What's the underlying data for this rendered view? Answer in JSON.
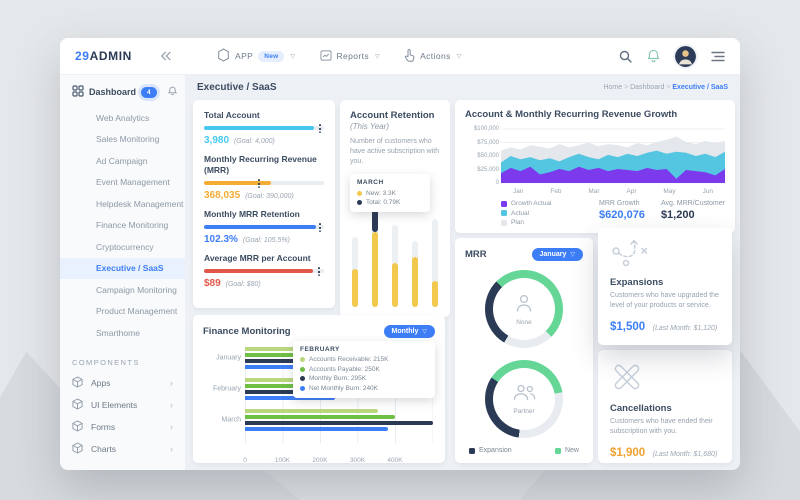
{
  "icons": {
    "dropdown": "▽",
    "breadcrumb_separator": ">",
    "chevron_right": "›"
  },
  "navbar": {
    "logo_prefix": "29",
    "logo_suffix": "ADMIN",
    "menus": [
      {
        "label": "APP",
        "badge": "New",
        "icon": "hexagon-icon"
      },
      {
        "label": "Reports",
        "icon": "reports-icon"
      },
      {
        "label": "Actions",
        "icon": "actions-icon"
      }
    ],
    "right_icons": [
      "search-icon",
      "notifications-bell-icon",
      "user-avatar",
      "menu-icon"
    ]
  },
  "sidebar": {
    "dashboard_label": "Dashboard",
    "dashboard_badge": "4",
    "items": [
      "Web Analytics",
      "Sales Monitoring",
      "Ad Campaign",
      "Event Management",
      "Helpdesk Management",
      "Finance Monitoring",
      "Cryptocurrency",
      "Executive / SaaS",
      "Campaign Monitoring",
      "Product Management",
      "Smarthome"
    ],
    "active_item": "Executive / SaaS",
    "components_label": "COMPONENTS",
    "components": [
      "Apps",
      "UI Elements",
      "Forms",
      "Charts"
    ]
  },
  "header": {
    "title": "Executive / SaaS",
    "breadcrumb": [
      "Home",
      "Dashboard",
      "Executive / SaaS"
    ]
  },
  "kpis": [
    {
      "label": "Total Account",
      "value": "3,980",
      "goal": "(Goal: 4,000)",
      "color": "#47c8ee",
      "pct": 92,
      "tick": 96
    },
    {
      "label": "Monthly Recurring Revenue (MRR)",
      "value": "368,035",
      "goal": "(Goal: 390,000)",
      "color": "#f2ac33",
      "pct": 56,
      "tick": 45
    },
    {
      "label": "Monthly MRR Retention",
      "value": "102.3%",
      "goal": "(Goal: 105.5%)",
      "color": "#3d7ef7",
      "pct": 93,
      "tick": 96
    },
    {
      "label": "Average MRR per Account",
      "value": "$89",
      "goal": "(Goal: $80)",
      "color": "#e2574c",
      "pct": 91,
      "tick": 95
    }
  ],
  "retention": {
    "title": "Account Retention",
    "subtitle": "(This Year)",
    "description": "Number of customers who have active subscription with you.",
    "tooltip": {
      "title": "MARCH",
      "rows": [
        {
          "label": "New: 3.3K",
          "color": "#f2c94c"
        },
        {
          "label": "Total: 0.79K",
          "color": "#2b3a55"
        }
      ]
    }
  },
  "growth": {
    "title": "Account & Monthly Recurring Revenue Growth",
    "legend": [
      {
        "label": "Growth Actual",
        "color": "#7c3aed"
      },
      {
        "label": "Actual",
        "color": "#54c6e2"
      },
      {
        "label": "Plan",
        "color": "#e4e7eb"
      }
    ],
    "stats": [
      {
        "label": "MRR Growth",
        "value": "$620,076",
        "color": "#3d7ef7"
      },
      {
        "label": "Avg. MRR/Customer",
        "value": "$1,200",
        "color": "#2b3a55"
      }
    ]
  },
  "mrr": {
    "title": "MRR",
    "month": "January",
    "donut_labels": [
      {
        "label": "None",
        "icon": "single-user-icon"
      },
      {
        "label": "Partner",
        "icon": "multi-user-icon"
      }
    ],
    "legend": [
      {
        "label": "Expansion",
        "color": "#2b3a55"
      },
      {
        "label": "New",
        "color": "#65d695"
      }
    ]
  },
  "expansions": {
    "title": "Expansions",
    "description": "Customers who have upgraded the level of your products or service.",
    "value": "$1,500",
    "value_color": "#3d7ef7",
    "last_month": "(Last Month: $1,120)"
  },
  "cancellations": {
    "title": "Cancellations",
    "description": "Customers who have ended their subscription with you.",
    "value": "$1,900",
    "value_color": "#f0a22e",
    "last_month": "(Last Month: $1,680)"
  },
  "finance": {
    "title": "Finance Monitoring",
    "period": "Monthly",
    "tooltip": {
      "title": "FEBRUARY",
      "rows": [
        {
          "label": "Accounts Receivable: 215K",
          "color": "#b9d87d"
        },
        {
          "label": "Accounts Payable: 250K",
          "color": "#6fbf44"
        },
        {
          "label": "Monthly Burn: 295K",
          "color": "#2b3a55"
        },
        {
          "label": "Net Monthly Burn: 240K",
          "color": "#3d7ef7"
        }
      ]
    }
  },
  "chart_data": [
    {
      "id": "account-retention",
      "type": "bar",
      "title": "Account Retention (This Year)",
      "unit": "percent of chart height",
      "points": [
        {
          "track": 70,
          "fill": 38
        },
        {
          "track": 100,
          "fill": 75,
          "cap": 25
        },
        {
          "track": 82,
          "fill": 44
        },
        {
          "track": 66,
          "fill": 50
        },
        {
          "track": 88,
          "fill": 26
        }
      ],
      "highlight": {
        "index": 1,
        "month": "MARCH",
        "new": "3.3K",
        "total": "0.79K"
      },
      "colors": {
        "track": "#edf0f3",
        "fill": "#f2c94c",
        "cap": "#2b3a55"
      }
    },
    {
      "id": "revenue-growth",
      "type": "area",
      "title": "Account & Monthly Recurring Revenue Growth",
      "x_labels": [
        "Jan",
        "Feb",
        "Mar",
        "Apr",
        "May",
        "Jun"
      ],
      "y_ticks": [
        {
          "label": "$100,000",
          "value": 100
        },
        {
          "label": "$75,000",
          "value": 75
        },
        {
          "label": "$50,000",
          "value": 50
        },
        {
          "label": "$25,000",
          "value": 25
        },
        {
          "label": "0",
          "value": 0
        }
      ],
      "ylim": [
        0,
        100
      ],
      "unit": "$ thousands",
      "legend_position": "bottom-left",
      "series": [
        {
          "name": "Plan",
          "color": "#e4e7eb",
          "values": [
            60,
            66,
            62,
            70,
            67,
            64,
            72,
            66,
            70,
            75,
            68,
            72,
            70,
            66,
            74,
            70,
            76,
            80,
            86,
            76,
            72,
            78,
            74,
            78
          ]
        },
        {
          "name": "Actual",
          "color": "#54c6e2",
          "values": [
            38,
            50,
            44,
            48,
            42,
            46,
            40,
            48,
            54,
            48,
            44,
            52,
            48,
            54,
            50,
            56,
            60,
            54,
            58,
            56,
            50,
            54,
            48,
            58
          ]
        },
        {
          "name": "Growth Actual",
          "color": "#7c3aed",
          "values": [
            18,
            28,
            22,
            30,
            16,
            20,
            26,
            22,
            30,
            24,
            28,
            22,
            26,
            24,
            22,
            28,
            24,
            26,
            8,
            24,
            22,
            20,
            14,
            26
          ]
        }
      ]
    },
    {
      "id": "mrr-breakdown",
      "type": "pie",
      "title": "MRR (January)",
      "colors": {
        "Other": "#e8ebef",
        "Expansion": "#2b3a55",
        "New": "#65d695"
      },
      "donuts": [
        {
          "label": "None",
          "from": 135,
          "slices": [
            {
              "name": "Other",
              "pct": 21
            },
            {
              "name": "Expansion",
              "pct": 29
            },
            {
              "name": "New",
              "pct": 50
            }
          ]
        },
        {
          "label": "Partner",
          "from": 80,
          "slices": [
            {
              "name": "Other",
              "pct": 30
            },
            {
              "name": "Expansion",
              "pct": 32
            },
            {
              "name": "New",
              "pct": 38
            }
          ]
        }
      ]
    },
    {
      "id": "finance-monitoring",
      "type": "bar",
      "orientation": "horizontal",
      "title": "Finance Monitoring (Monthly)",
      "categories": [
        "January",
        "February",
        "March"
      ],
      "x_ticks": [
        "0",
        "100K",
        "200K",
        "300K",
        "400K"
      ],
      "xlim": [
        0,
        520
      ],
      "unit": "K",
      "series": [
        {
          "name": "Accounts Receivable",
          "color": "#b9d87d",
          "values": [
            150,
            215,
            355
          ]
        },
        {
          "name": "Accounts Payable",
          "color": "#6fbf44",
          "values": [
            180,
            250,
            400
          ]
        },
        {
          "name": "Monthly Burn",
          "color": "#2b3a55",
          "values": [
            180,
            295,
            500
          ]
        },
        {
          "name": "Net Monthly Burn",
          "color": "#3d7ef7",
          "values": [
            180,
            240,
            380
          ]
        }
      ]
    }
  ]
}
